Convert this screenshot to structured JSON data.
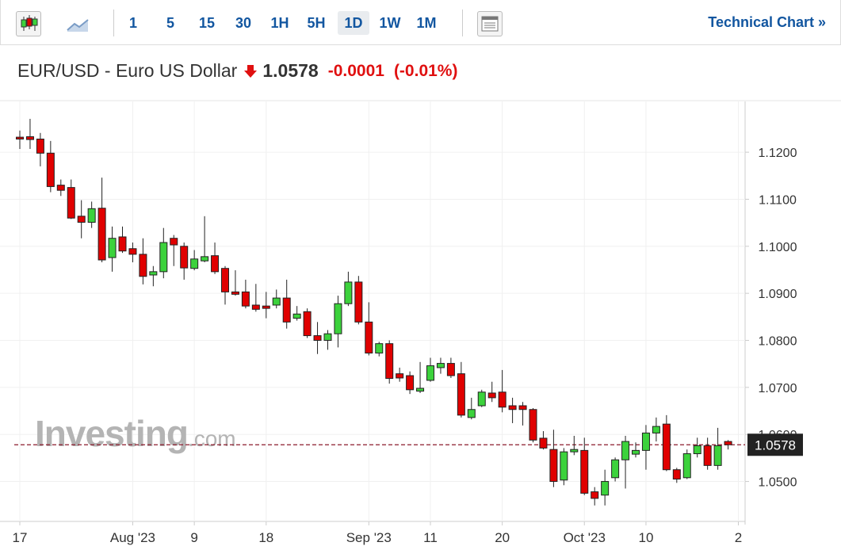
{
  "toolbar": {
    "intervals": [
      "1",
      "5",
      "15",
      "30",
      "1H",
      "5H",
      "1D",
      "1W",
      "1M"
    ],
    "active": "1D",
    "technical_link": "Technical Chart »"
  },
  "header": {
    "instrument": "EUR/USD - Euro US Dollar",
    "change": "-0.0001",
    "change_pct": "(-0.01%)"
  },
  "chart_data": {
    "type": "candlestick",
    "watermark": {
      "brand": "Investing",
      "suffix": ".com"
    },
    "up_color": "#3cd23c",
    "down_color": "#e00000",
    "last_price_line_color": "#8b1a2b",
    "last_price": 1.0578,
    "grid": true,
    "ylim": [
      1.0415,
      1.1308
    ],
    "yticks": [
      {
        "value": 1.05,
        "label": "1.0500"
      },
      {
        "value": 1.06,
        "label": "1.0600"
      },
      {
        "value": 1.07,
        "label": "1.0700"
      },
      {
        "value": 1.08,
        "label": "1.0800"
      },
      {
        "value": 1.09,
        "label": "1.0900"
      },
      {
        "value": 1.1,
        "label": "1.1000"
      },
      {
        "value": 1.11,
        "label": "1.1100"
      },
      {
        "value": 1.12,
        "label": "1.1200"
      }
    ],
    "categories": [
      "17",
      null,
      null,
      null,
      null,
      null,
      null,
      null,
      null,
      null,
      null,
      "Aug '23",
      null,
      null,
      null,
      null,
      null,
      "9",
      null,
      null,
      null,
      null,
      null,
      null,
      "18",
      null,
      null,
      null,
      null,
      null,
      null,
      null,
      null,
      null,
      "Sep '23",
      null,
      null,
      null,
      null,
      null,
      "11",
      null,
      null,
      null,
      null,
      null,
      null,
      "20",
      null,
      null,
      null,
      null,
      null,
      null,
      null,
      "Oct '23",
      null,
      null,
      null,
      null,
      null,
      "10",
      null,
      null,
      null,
      null,
      null,
      null,
      null,
      null,
      "2"
    ],
    "open": [
      1.1232,
      1.1233,
      1.1228,
      1.1198,
      1.113,
      1.1125,
      1.1064,
      1.1051,
      1.1081,
      1.0976,
      1.102,
      1.0995,
      1.0983,
      1.0939,
      1.0946,
      1.1017,
      1.1,
      1.0953,
      1.0969,
      1.098,
      1.0953,
      1.0903,
      1.0903,
      1.0875,
      1.0873,
      1.0875,
      1.089,
      1.0847,
      1.0861,
      1.081,
      1.08,
      1.0814,
      1.0878,
      1.0924,
      1.0839,
      1.0773,
      1.0793,
      1.0729,
      1.0725,
      1.0692,
      1.0715,
      1.0742,
      1.0751,
      1.0729,
      1.0636,
      1.0661,
      1.0688,
      1.069,
      1.0661,
      1.0661,
      1.0653,
      1.0592,
      1.0568,
      1.0503,
      1.0563,
      1.0566,
      1.0478,
      1.0471,
      1.0508,
      1.0546,
      1.0558,
      1.0566,
      1.0603,
      1.0622,
      1.0525,
      1.0508,
      1.0559,
      1.0576,
      1.0534,
      1.0585,
      null
    ],
    "high": [
      1.1246,
      1.1271,
      1.1241,
      1.1224,
      1.1142,
      1.1142,
      1.1098,
      1.1095,
      1.1146,
      1.1042,
      1.1042,
      1.1008,
      1.1017,
      1.0958,
      1.1039,
      1.1024,
      1.1008,
      1.0992,
      1.1064,
      1.1008,
      1.0958,
      1.0949,
      1.0929,
      1.092,
      1.0903,
      1.0908,
      1.0929,
      1.0873,
      1.0868,
      1.0839,
      1.0822,
      1.0895,
      1.0946,
      1.0937,
      1.0881,
      1.0797,
      1.08,
      1.0742,
      1.0734,
      1.0754,
      1.0763,
      1.0763,
      1.0763,
      1.0754,
      1.0678,
      1.0695,
      1.0712,
      1.0737,
      1.0678,
      1.0669,
      1.0656,
      1.0607,
      1.061,
      1.0571,
      1.0597,
      1.0593,
      1.0488,
      1.0525,
      1.0551,
      1.0597,
      1.0583,
      1.062,
      1.0636,
      1.0641,
      1.0529,
      1.0568,
      1.0593,
      1.0593,
      1.0614,
      1.0588,
      null
    ],
    "low": [
      1.1207,
      1.1207,
      1.117,
      1.1115,
      1.1107,
      1.1058,
      1.1017,
      1.1039,
      1.0966,
      1.0946,
      1.0986,
      1.0966,
      1.0919,
      1.0915,
      1.0932,
      1.0958,
      1.0929,
      1.0949,
      1.0966,
      1.0941,
      1.0876,
      1.0895,
      1.0868,
      1.0861,
      1.0847,
      1.0868,
      1.0825,
      1.0842,
      1.0805,
      1.0771,
      1.078,
      1.0785,
      1.0873,
      1.0834,
      1.0768,
      1.0766,
      1.0708,
      1.0712,
      1.0686,
      1.0688,
      1.0712,
      1.0729,
      1.072,
      1.0636,
      1.0632,
      1.0658,
      1.0669,
      1.0647,
      1.0624,
      1.0619,
      1.0583,
      1.0568,
      1.0488,
      1.0492,
      1.0556,
      1.0471,
      1.0449,
      1.0449,
      1.05,
      1.0485,
      1.0551,
      1.0525,
      1.0585,
      1.0522,
      1.0497,
      1.0505,
      1.0551,
      1.0525,
      1.0525,
      1.0568,
      null
    ],
    "close": [
      1.1228,
      1.1227,
      1.1198,
      1.1127,
      1.1119,
      1.106,
      1.1051,
      1.108,
      1.0971,
      1.1017,
      1.099,
      1.0983,
      1.0936,
      1.0946,
      1.1008,
      1.1003,
      1.0954,
      1.0973,
      1.0978,
      1.0946,
      1.0903,
      1.0898,
      1.0873,
      1.0866,
      1.0868,
      1.089,
      1.0839,
      1.0856,
      1.081,
      1.08,
      1.0814,
      1.0878,
      1.0924,
      1.0839,
      1.0773,
      1.0793,
      1.0719,
      1.072,
      1.0695,
      1.0698,
      1.0746,
      1.0751,
      1.0725,
      1.0641,
      1.0653,
      1.069,
      1.0678,
      1.0658,
      1.0653,
      1.0653,
      1.0588,
      1.0571,
      1.05,
      1.0563,
      1.0568,
      1.0475,
      1.0464,
      1.05,
      1.0546,
      1.0585,
      1.0566,
      1.0603,
      1.0617,
      1.0525,
      1.0505,
      1.0559,
      1.0576,
      1.0534,
      1.0576,
      1.0578,
      null
    ]
  }
}
